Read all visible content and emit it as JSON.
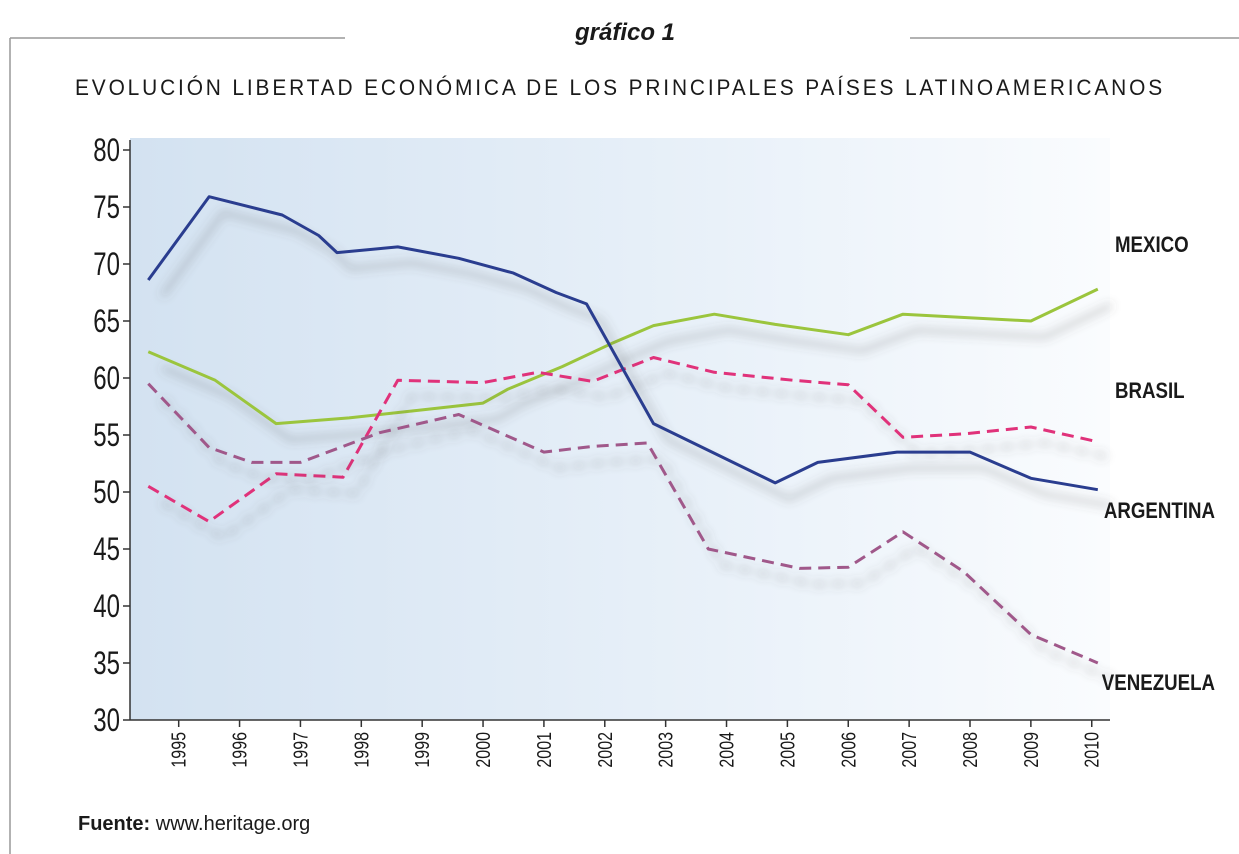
{
  "chart_data": {
    "type": "line",
    "supertitle": "gráfico 1",
    "title": "EVOLUCIÓN LIBERTAD ECONÓMICA DE LOS PRINCIPALES PAÍSES LATINOAMERICANOS",
    "source_label": "Fuente:",
    "source": "www.heritage.org",
    "xlim": [
      1994.2,
      2010.3
    ],
    "xticks": [
      1995,
      1996,
      1997,
      1998,
      1999,
      2000,
      2001,
      2002,
      2003,
      2004,
      2005,
      2006,
      2007,
      2008,
      2009,
      2010
    ],
    "ylim": [
      30,
      80
    ],
    "yticks": [
      30,
      35,
      40,
      45,
      50,
      55,
      60,
      65,
      70,
      75,
      80
    ],
    "series": [
      {
        "name": "MEXICO",
        "color": "#9bc53d",
        "dashed": false,
        "x": [
          1994.5,
          1995.6,
          1996.6,
          1997.8,
          1999.0,
          2000.0,
          2000.4,
          2001.3,
          2002.1,
          2002.8,
          2003.8,
          2004.8,
          2006.0,
          2006.9,
          2009.0,
          2010.1
        ],
        "values": [
          62.3,
          59.8,
          56,
          56.5,
          57.2,
          57.8,
          59,
          61,
          63,
          64.6,
          65.6,
          64.7,
          63.8,
          65.6,
          65,
          67.8
        ]
      },
      {
        "name": "BRASIL",
        "color": "#e0307a",
        "dashed": true,
        "x": [
          1994.5,
          1995.5,
          1996.6,
          1997.7,
          1998.6,
          2000.0,
          2000.9,
          2001.8,
          2002.8,
          2003.8,
          2005.1,
          2006.0,
          2006.9,
          2007.9,
          2009.0,
          2010.1
        ],
        "values": [
          50.5,
          47.4,
          51.6,
          51.3,
          59.8,
          59.6,
          60.5,
          59.7,
          61.8,
          60.5,
          59.8,
          59.4,
          54.8,
          55.1,
          55.7,
          54.4
        ]
      },
      {
        "name": "ARGENTINA",
        "color": "#2a3d8f",
        "dashed": false,
        "x": [
          1994.5,
          1995.5,
          1996.7,
          1997.3,
          1997.6,
          1998.6,
          1999.6,
          2000.5,
          2001.2,
          2001.7,
          2002.8,
          2004.8,
          2005.5,
          2006.8,
          2008.0,
          2009.0,
          2010.1
        ],
        "values": [
          68.6,
          75.9,
          74.3,
          72.5,
          71,
          71.5,
          70.5,
          69.2,
          67.5,
          66.5,
          56,
          50.8,
          52.6,
          53.5,
          53.5,
          51.2,
          50.2
        ]
      },
      {
        "name": "VENEZUELA",
        "color": "#a0588a",
        "dashed": true,
        "x": [
          1994.5,
          1995.5,
          1996.2,
          1997.0,
          1998.3,
          1999.6,
          2001.0,
          2001.8,
          2002.7,
          2003.7,
          2005.2,
          2006.0,
          2006.9,
          2007.9,
          2009.0,
          2010.1
        ],
        "values": [
          59.5,
          53.9,
          52.6,
          52.6,
          55.2,
          56.8,
          53.5,
          54,
          54.3,
          45,
          43.3,
          43.4,
          46.5,
          43,
          37.5,
          35
        ]
      }
    ]
  }
}
